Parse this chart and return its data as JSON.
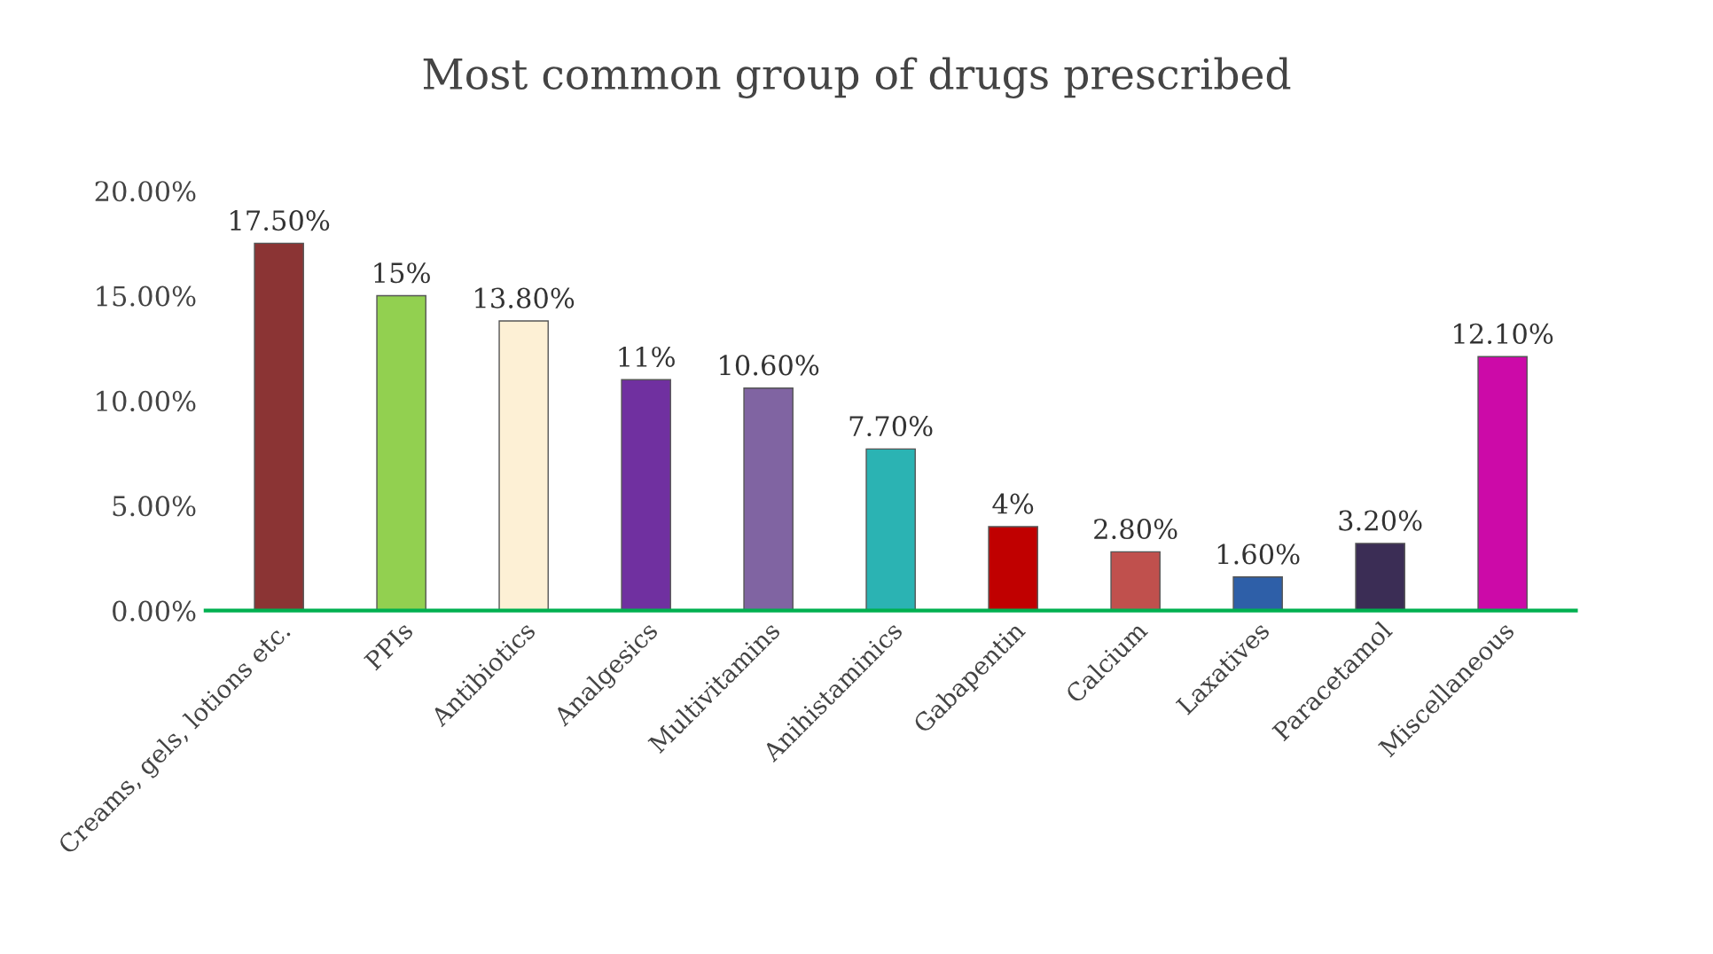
{
  "chart_data": {
    "type": "bar",
    "title": "Most common group of drugs prescribed",
    "categories": [
      "Creams, gels, lotions etc.",
      "PPIs",
      "Antibiotics",
      "Analgesics",
      "Multivitamins",
      "Anihistaminics",
      "Gabapentin",
      "Calcium",
      "Laxatives",
      "Paracetamol",
      "Miscellaneous"
    ],
    "values": [
      17.5,
      15,
      13.8,
      11,
      10.6,
      7.7,
      4,
      2.8,
      1.6,
      3.2,
      12.1
    ],
    "value_labels": [
      "17.50%",
      "15%",
      "13.80%",
      "11%",
      "10.60%",
      "7.70%",
      "4%",
      "2.80%",
      "1.60%",
      "3.20%",
      "12.10%"
    ],
    "colors": [
      "#8b3434",
      "#92d050",
      "#fdf0d5",
      "#7030a0",
      "#8064a2",
      "#2bb3b3",
      "#c00000",
      "#c0504d",
      "#2e5fa8",
      "#3b2d55",
      "#cc0aa8"
    ],
    "ylim": [
      0,
      20
    ],
    "yticks": [
      {
        "value": 0,
        "label": "0.00%"
      },
      {
        "value": 5,
        "label": "5.00%"
      },
      {
        "value": 10,
        "label": "10.00%"
      },
      {
        "value": 15,
        "label": "15.00%"
      },
      {
        "value": 20,
        "label": "20.00%"
      }
    ],
    "grid": false,
    "legend": false
  }
}
